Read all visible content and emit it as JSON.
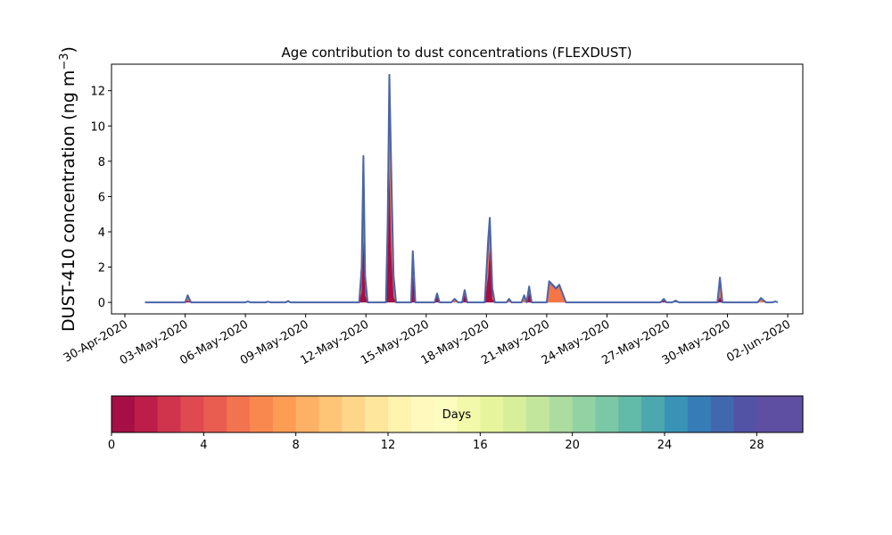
{
  "chart_data": [
    {
      "type": "area",
      "title": "Age contribution to dust concentrations (FLEXDUST)",
      "ylabel": "DUST-410 concentration (ng m",
      "ylabel_sup": "−3",
      "ylabel_close": ")",
      "xlabel": "",
      "x_axis": "date",
      "xlim": [
        "2020-04-29T08:00",
        "2020-06-02T18:00"
      ],
      "ylim": [
        -0.65,
        13.5
      ],
      "yticks": [
        0,
        2,
        4,
        6,
        8,
        10,
        12
      ],
      "xticks": [
        "2020-04-30",
        "2020-05-03",
        "2020-05-06",
        "2020-05-09",
        "2020-05-12",
        "2020-05-15",
        "2020-05-18",
        "2020-05-21",
        "2020-05-24",
        "2020-05-27",
        "2020-05-30",
        "2020-06-02"
      ],
      "xtick_labels": [
        "30-Apr-2020",
        "03-May-2020",
        "06-May-2020",
        "09-May-2020",
        "12-May-2020",
        "15-May-2020",
        "18-May-2020",
        "21-May-2020",
        "24-May-2020",
        "27-May-2020",
        "30-May-2020",
        "02-Jun-2020"
      ],
      "grid": false,
      "total_line_color": "#4b65a8",
      "series": [
        {
          "color": "#a50f45",
          "points": [
            [
              "2020-05-01T00:00",
              0
            ],
            [
              "2020-05-03T00:00",
              0
            ],
            [
              "2020-05-03T03:00",
              0.1
            ],
            [
              "2020-05-03T07:00",
              0
            ],
            [
              "2020-05-11T16:00",
              0
            ],
            [
              "2020-05-11T19:00",
              0.6
            ],
            [
              "2020-05-11T21:00",
              3.5
            ],
            [
              "2020-05-11T23:00",
              0.4
            ],
            [
              "2020-05-12T02:00",
              0
            ],
            [
              "2020-05-13T00:00",
              0
            ],
            [
              "2020-05-13T02:00",
              2.2
            ],
            [
              "2020-05-13T04:00",
              7.5
            ],
            [
              "2020-05-13T06:00",
              3.0
            ],
            [
              "2020-05-13T09:00",
              0.3
            ],
            [
              "2020-05-13T12:00",
              0
            ],
            [
              "2020-05-14T06:00",
              0
            ],
            [
              "2020-05-14T08:00",
              1.5
            ],
            [
              "2020-05-14T11:00",
              0
            ],
            [
              "2020-05-15T10:00",
              0
            ],
            [
              "2020-05-15T13:00",
              0.3
            ],
            [
              "2020-05-15T16:00",
              0
            ],
            [
              "2020-05-16T19:00",
              0
            ],
            [
              "2020-05-16T22:00",
              0.4
            ],
            [
              "2020-05-17T01:00",
              0
            ],
            [
              "2020-05-17T22:00",
              0
            ],
            [
              "2020-05-18T02:00",
              1.5
            ],
            [
              "2020-05-18T04:00",
              3.0
            ],
            [
              "2020-05-18T07:00",
              0.2
            ],
            [
              "2020-05-18T10:00",
              0
            ],
            [
              "2020-05-20T00:00",
              0
            ],
            [
              "2020-05-20T03:00",
              0.5
            ],
            [
              "2020-05-20T06:00",
              0
            ],
            [
              "2020-05-26T16:00",
              0
            ],
            [
              "2020-05-26T20:00",
              0.1
            ],
            [
              "2020-05-26T23:00",
              0
            ],
            [
              "2020-05-29T12:00",
              0
            ],
            [
              "2020-05-29T15:00",
              0.3
            ],
            [
              "2020-05-29T18:00",
              0
            ],
            [
              "2020-06-01T12:00",
              0
            ]
          ]
        },
        {
          "color": "#f57547",
          "points": [
            [
              "2020-05-01T00:00",
              0
            ],
            [
              "2020-05-03T00:00",
              0
            ],
            [
              "2020-05-03T03:00",
              0.3
            ],
            [
              "2020-05-03T07:00",
              0
            ],
            [
              "2020-05-11T16:00",
              0
            ],
            [
              "2020-05-11T19:00",
              1.0
            ],
            [
              "2020-05-11T21:00",
              4.6
            ],
            [
              "2020-05-11T23:00",
              0.6
            ],
            [
              "2020-05-12T02:00",
              0
            ],
            [
              "2020-05-13T00:00",
              0
            ],
            [
              "2020-05-13T02:00",
              3.5
            ],
            [
              "2020-05-13T04:00",
              11.0
            ],
            [
              "2020-05-13T06:00",
              6.0
            ],
            [
              "2020-05-13T09:00",
              0.8
            ],
            [
              "2020-05-13T12:00",
              0
            ],
            [
              "2020-05-14T06:00",
              0
            ],
            [
              "2020-05-14T08:00",
              2.0
            ],
            [
              "2020-05-14T11:00",
              0
            ],
            [
              "2020-05-15T10:00",
              0
            ],
            [
              "2020-05-15T13:00",
              0.4
            ],
            [
              "2020-05-15T16:00",
              0
            ],
            [
              "2020-05-16T06:00",
              0
            ],
            [
              "2020-05-16T10:00",
              0.15
            ],
            [
              "2020-05-16T14:00",
              0
            ],
            [
              "2020-05-16T19:00",
              0
            ],
            [
              "2020-05-16T22:00",
              0.5
            ],
            [
              "2020-05-17T01:00",
              0
            ],
            [
              "2020-05-17T22:00",
              0
            ],
            [
              "2020-05-18T02:00",
              2.5
            ],
            [
              "2020-05-18T04:00",
              4.0
            ],
            [
              "2020-05-18T07:00",
              0.4
            ],
            [
              "2020-05-18T10:00",
              0
            ],
            [
              "2020-05-19T00:00",
              0
            ],
            [
              "2020-05-19T03:00",
              0.15
            ],
            [
              "2020-05-19T06:00",
              0
            ],
            [
              "2020-05-19T18:00",
              0
            ],
            [
              "2020-05-19T21:00",
              0.3
            ],
            [
              "2020-05-20T00:00",
              0
            ],
            [
              "2020-05-20T03:00",
              0.7
            ],
            [
              "2020-05-20T06:00",
              0
            ],
            [
              "2020-05-21T00:00",
              0
            ],
            [
              "2020-05-21T03:00",
              1.1
            ],
            [
              "2020-05-21T07:00",
              0.9
            ],
            [
              "2020-05-21T11:00",
              0.7
            ],
            [
              "2020-05-21T15:00",
              0.9
            ],
            [
              "2020-05-21T19:00",
              0.4
            ],
            [
              "2020-05-21T23:00",
              0
            ],
            [
              "2020-05-26T16:00",
              0
            ],
            [
              "2020-05-26T20:00",
              0.15
            ],
            [
              "2020-05-26T23:00",
              0
            ],
            [
              "2020-05-29T12:00",
              0
            ],
            [
              "2020-05-29T15:00",
              1.2
            ],
            [
              "2020-05-29T18:00",
              0
            ],
            [
              "2020-05-31T12:00",
              0
            ],
            [
              "2020-05-31T16:00",
              0.2
            ],
            [
              "2020-05-31T22:00",
              0
            ],
            [
              "2020-06-01T12:00",
              0
            ]
          ]
        },
        {
          "color": "#4b65a8",
          "points": [
            [
              "2020-05-01T00:00",
              0
            ],
            [
              "2020-05-03T00:00",
              0
            ],
            [
              "2020-05-03T03:00",
              0.4
            ],
            [
              "2020-05-03T07:00",
              0
            ],
            [
              "2020-05-06T00:00",
              0
            ],
            [
              "2020-05-06T03:00",
              0.05
            ],
            [
              "2020-05-06T06:00",
              0
            ],
            [
              "2020-05-07T00:00",
              0
            ],
            [
              "2020-05-07T03:00",
              0.04
            ],
            [
              "2020-05-07T06:00",
              0
            ],
            [
              "2020-05-08T00:00",
              0
            ],
            [
              "2020-05-08T03:00",
              0.08
            ],
            [
              "2020-05-08T06:00",
              0
            ],
            [
              "2020-05-11T16:00",
              0
            ],
            [
              "2020-05-11T19:00",
              2.0
            ],
            [
              "2020-05-11T21:00",
              8.3
            ],
            [
              "2020-05-11T23:00",
              1.5
            ],
            [
              "2020-05-12T02:00",
              0
            ],
            [
              "2020-05-13T00:00",
              0
            ],
            [
              "2020-05-13T02:00",
              4.5
            ],
            [
              "2020-05-13T04:00",
              12.9
            ],
            [
              "2020-05-13T06:00",
              8.0
            ],
            [
              "2020-05-13T09:00",
              1.5
            ],
            [
              "2020-05-13T12:00",
              0
            ],
            [
              "2020-05-14T06:00",
              0
            ],
            [
              "2020-05-14T08:00",
              2.9
            ],
            [
              "2020-05-14T11:00",
              0
            ],
            [
              "2020-05-15T10:00",
              0
            ],
            [
              "2020-05-15T13:00",
              0.5
            ],
            [
              "2020-05-15T16:00",
              0
            ],
            [
              "2020-05-16T06:00",
              0
            ],
            [
              "2020-05-16T10:00",
              0.2
            ],
            [
              "2020-05-16T14:00",
              0
            ],
            [
              "2020-05-16T19:00",
              0
            ],
            [
              "2020-05-16T22:00",
              0.7
            ],
            [
              "2020-05-17T01:00",
              0
            ],
            [
              "2020-05-17T22:00",
              0
            ],
            [
              "2020-05-18T02:00",
              3.5
            ],
            [
              "2020-05-18T04:00",
              4.8
            ],
            [
              "2020-05-18T07:00",
              0.8
            ],
            [
              "2020-05-18T10:00",
              0
            ],
            [
              "2020-05-19T00:00",
              0
            ],
            [
              "2020-05-19T03:00",
              0.2
            ],
            [
              "2020-05-19T06:00",
              0
            ],
            [
              "2020-05-19T18:00",
              0
            ],
            [
              "2020-05-19T21:00",
              0.4
            ],
            [
              "2020-05-20T00:00",
              0
            ],
            [
              "2020-05-20T03:00",
              0.9
            ],
            [
              "2020-05-20T06:00",
              0
            ],
            [
              "2020-05-21T00:00",
              0
            ],
            [
              "2020-05-21T03:00",
              1.2
            ],
            [
              "2020-05-21T07:00",
              1.0
            ],
            [
              "2020-05-21T11:00",
              0.8
            ],
            [
              "2020-05-21T15:00",
              1.0
            ],
            [
              "2020-05-21T19:00",
              0.5
            ],
            [
              "2020-05-21T23:00",
              0
            ],
            [
              "2020-05-26T16:00",
              0
            ],
            [
              "2020-05-26T20:00",
              0.2
            ],
            [
              "2020-05-26T23:00",
              0
            ],
            [
              "2020-05-27T06:00",
              0
            ],
            [
              "2020-05-27T10:00",
              0.1
            ],
            [
              "2020-05-27T14:00",
              0
            ],
            [
              "2020-05-29T12:00",
              0
            ],
            [
              "2020-05-29T15:00",
              1.4
            ],
            [
              "2020-05-29T18:00",
              0
            ],
            [
              "2020-05-31T12:00",
              0
            ],
            [
              "2020-05-31T16:00",
              0.25
            ],
            [
              "2020-05-31T22:00",
              0
            ],
            [
              "2020-06-01T06:00",
              0
            ],
            [
              "2020-06-01T09:00",
              0.05
            ],
            [
              "2020-06-01T12:00",
              0
            ]
          ]
        }
      ]
    },
    {
      "type": "colorbar",
      "label": "Days",
      "range": [
        0,
        30
      ],
      "ticks": [
        0,
        4,
        8,
        12,
        16,
        20,
        24,
        28
      ],
      "tick_labels": [
        "0",
        "4",
        "8",
        "12",
        "16",
        "20",
        "24",
        "28"
      ],
      "colors": [
        "#a50f45",
        "#bd1e49",
        "#d0344d",
        "#de4a4f",
        "#e85d4f",
        "#f27350",
        "#f8884e",
        "#fc9c55",
        "#fdb165",
        "#fec577",
        "#fed68a",
        "#fee69c",
        "#fff3ad",
        "#fff9be",
        "#fcfdbf",
        "#f3f9aa",
        "#e6f59b",
        "#d7ee9a",
        "#c3e69d",
        "#acdca0",
        "#93d2a3",
        "#7ac8a5",
        "#62baa8",
        "#4da7ae",
        "#3a93b6",
        "#367db8",
        "#4168ae",
        "#5253a5",
        "#5e4fa2",
        "#5e4fa2"
      ]
    }
  ]
}
